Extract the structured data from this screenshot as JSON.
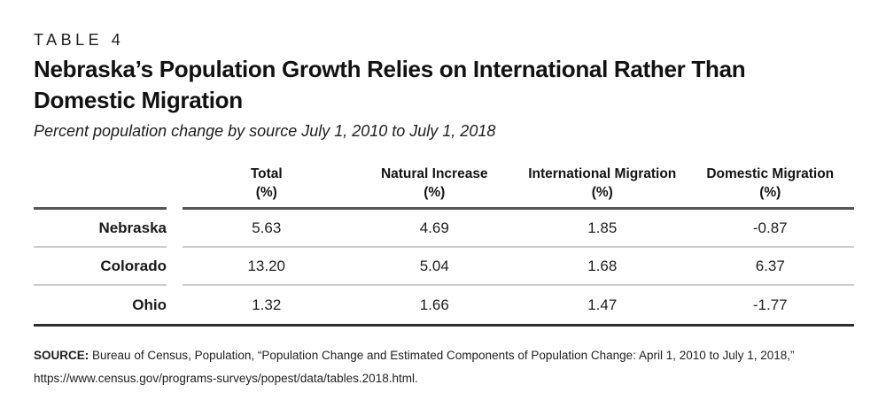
{
  "page": {
    "eyebrow": "TABLE 4",
    "title_line1": "Nebraska’s Population Growth Relies on International Rather Than",
    "title_line2": "Domestic Migration",
    "subtitle": "Percent population change by source July 1, 2010 to July 1, 2018"
  },
  "table": {
    "columns": [
      {
        "line1": "Total",
        "line2": "(%)"
      },
      {
        "line1": "Natural Increase",
        "line2": "(%)"
      },
      {
        "line1": "International Migration",
        "line2": "(%)"
      },
      {
        "line1": "Domestic Migration",
        "line2": "(%)"
      }
    ],
    "rows": [
      {
        "label": "Nebraska",
        "values": [
          "5.63",
          "4.69",
          "1.85",
          "-0.87"
        ]
      },
      {
        "label": "Colorado",
        "values": [
          "13.20",
          "5.04",
          "1.68",
          "6.37"
        ]
      },
      {
        "label": "Ohio",
        "values": [
          "1.32",
          "1.66",
          "1.47",
          "-1.77"
        ]
      }
    ]
  },
  "source": {
    "prefix": "SOURCE:",
    "text": "Bureau of Census, Population, “Population Change and Estimated Components of Population Change: April 1, 2010 to July 1, 2018,”",
    "url": "https://www.census.gov/programs-surveys/popest/data/tables.2018.html."
  },
  "colors": {
    "text": "#1a1a1a",
    "header_rule": "#565656",
    "row_separator": "#cccccc",
    "bottom_rule": "#2e2e2e",
    "background": "#ffffff"
  },
  "chart_data": {
    "type": "table",
    "title": "Nebraska's Population Growth Relies on International Rather Than Domestic Migration",
    "subtitle": "Percent population change by source July 1, 2010 to July 1, 2018",
    "table_label": "TABLE 4",
    "columns": [
      "Total (%)",
      "Natural Increase (%)",
      "International Migration (%)",
      "Domestic Migration (%)"
    ],
    "rows": [
      {
        "label": "Nebraska",
        "values": [
          5.63,
          4.69,
          1.85,
          -0.87
        ]
      },
      {
        "label": "Colorado",
        "values": [
          13.2,
          5.04,
          1.68,
          6.37
        ]
      },
      {
        "label": "Ohio",
        "values": [
          1.32,
          1.66,
          1.47,
          -1.77
        ]
      }
    ],
    "source": "SOURCE: Bureau of Census, Population, “Population Change and Estimated Components of Population Change: April 1, 2010 to July 1, 2018,” https://www.census.gov/programs-surveys/popest/data/tables.2018.html."
  }
}
